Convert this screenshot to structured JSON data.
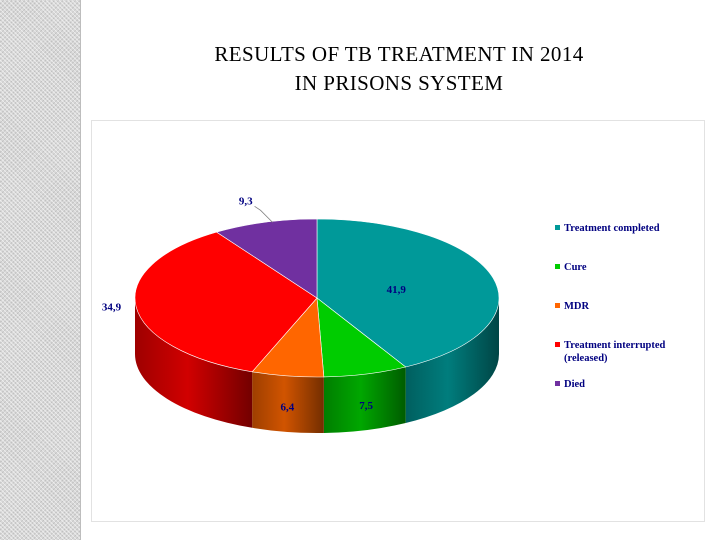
{
  "title_line1": "RESULTS  OF  TB  TREATMENT  IN  2014",
  "title_line2": "IN  PRISONS  SYSTEM",
  "chart_data": {
    "type": "pie",
    "style": "3d",
    "legend_position": "right",
    "categories": [
      "Treatment completed",
      "Cure",
      "MDR",
      "Treatment interrupted (released)",
      "Died"
    ],
    "values": [
      41.9,
      7.5,
      6.4,
      34.9,
      9.3
    ],
    "data_labels": [
      "41,9",
      "7,5",
      "6,4",
      "34,9",
      "9,3"
    ],
    "legend": [
      {
        "lines": [
          "Treatment completed"
        ]
      },
      {
        "lines": [
          "Cure"
        ]
      },
      {
        "lines": [
          "MDR"
        ]
      },
      {
        "lines": [
          "Treatment interrupted",
          "(released)"
        ]
      },
      {
        "lines": [
          "Died"
        ]
      }
    ],
    "colors": [
      "#009999",
      "#00cc00",
      "#ff6600",
      "#ff0000",
      "#7030a0"
    ],
    "label_colors": [
      "#000080",
      "#000080",
      "#000080",
      "#000080",
      "#000080"
    ],
    "legend_text_color": "#000080"
  }
}
